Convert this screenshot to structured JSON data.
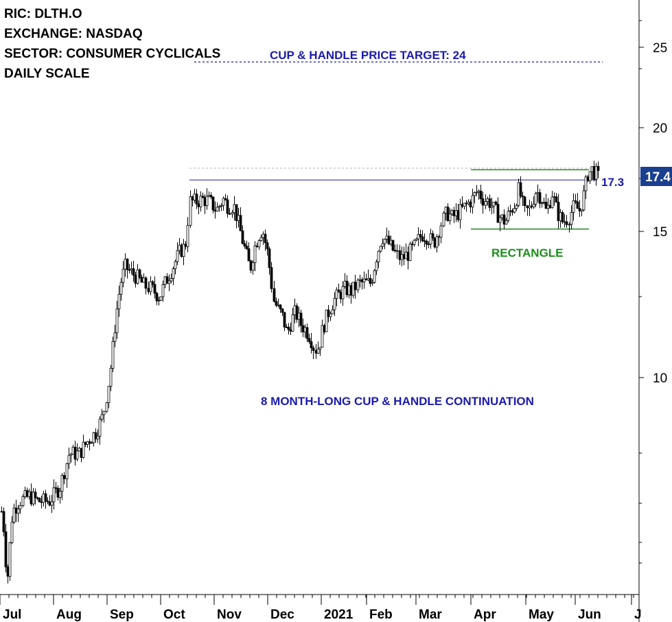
{
  "info": {
    "ric": "RIC: DLTH.O",
    "exchange": "EXCHANGE: NASDAQ",
    "sector": "SECTOR: CONSUMER CYCLICALS",
    "scale": "DAILY SCALE"
  },
  "chart_data": {
    "type": "candlestick",
    "scale": "log",
    "ylim": [
      6.2,
      28.5
    ],
    "y_ticks": [
      10,
      15,
      20,
      25
    ],
    "x_labels": [
      "Jul",
      "Aug",
      "Sep",
      "Oct",
      "Nov",
      "Dec",
      "2021",
      "Feb",
      "Mar",
      "Apr",
      "May",
      "Jun",
      "J"
    ],
    "last_price": "17.4",
    "levels": [
      {
        "name": "resistance",
        "value": 17.3,
        "label": "17.3",
        "color": "#1a1aa8"
      },
      {
        "name": "price-target",
        "value": 24,
        "label": "",
        "color": "#1a1ab0"
      },
      {
        "name": "rectangle-top",
        "value": 17.8,
        "label": "",
        "color": "#1a8f1a"
      },
      {
        "name": "rectangle-bottom",
        "value": 15.1,
        "label": "",
        "color": "#1a8f1a"
      }
    ],
    "annotations": {
      "target": "CUP & HANDLE PRICE TARGET: 24",
      "rectangle": "RECTANGLE",
      "pattern": "8 MONTH-LONG CUP & HANDLE CONTINUATION"
    },
    "price_path": [
      [
        0,
        7.1
      ],
      [
        6,
        6.5
      ],
      [
        10,
        5.6
      ],
      [
        18,
        6.9
      ],
      [
        28,
        7.1
      ],
      [
        42,
        7.2
      ],
      [
        55,
        7.1
      ],
      [
        72,
        7.1
      ],
      [
        88,
        7.4
      ],
      [
        100,
        8.1
      ],
      [
        115,
        8.1
      ],
      [
        128,
        8.4
      ],
      [
        140,
        8.6
      ],
      [
        150,
        9.0
      ],
      [
        158,
        9.9
      ],
      [
        162,
        10.5
      ],
      [
        168,
        11.8
      ],
      [
        175,
        13.0
      ],
      [
        182,
        13.6
      ],
      [
        190,
        13.4
      ],
      [
        200,
        13.2
      ],
      [
        210,
        12.9
      ],
      [
        220,
        12.8
      ],
      [
        232,
        12.5
      ],
      [
        240,
        13.0
      ],
      [
        250,
        13.5
      ],
      [
        262,
        14.2
      ],
      [
        270,
        14.4
      ],
      [
        276,
        16.3
      ],
      [
        285,
        16.3
      ],
      [
        295,
        16.4
      ],
      [
        305,
        16.3
      ],
      [
        315,
        15.9
      ],
      [
        325,
        16.4
      ],
      [
        332,
        16.1
      ],
      [
        340,
        16.1
      ],
      [
        347,
        15.3
      ],
      [
        352,
        14.7
      ],
      [
        358,
        14.1
      ],
      [
        364,
        13.5
      ],
      [
        370,
        14.3
      ],
      [
        376,
        14.8
      ],
      [
        382,
        15.1
      ],
      [
        390,
        14.1
      ],
      [
        398,
        12.4
      ],
      [
        404,
        12.1
      ],
      [
        410,
        11.9
      ],
      [
        418,
        11.3
      ],
      [
        424,
        11.7
      ],
      [
        430,
        12.0
      ],
      [
        438,
        11.6
      ],
      [
        446,
        11.4
      ],
      [
        452,
        11.2
      ],
      [
        458,
        10.8
      ],
      [
        464,
        10.9
      ],
      [
        470,
        11.5
      ],
      [
        478,
        12.0
      ],
      [
        486,
        12.4
      ],
      [
        494,
        12.6
      ],
      [
        502,
        12.8
      ],
      [
        512,
        12.7
      ],
      [
        522,
        13.0
      ],
      [
        532,
        13.0
      ],
      [
        540,
        13.0
      ],
      [
        548,
        14.0
      ],
      [
        556,
        14.8
      ],
      [
        566,
        14.5
      ],
      [
        576,
        14.1
      ],
      [
        584,
        13.9
      ],
      [
        594,
        14.1
      ],
      [
        604,
        14.4
      ],
      [
        614,
        14.9
      ],
      [
        622,
        14.8
      ],
      [
        632,
        14.5
      ],
      [
        642,
        15.3
      ],
      [
        650,
        15.8
      ],
      [
        658,
        15.6
      ],
      [
        668,
        15.8
      ],
      [
        678,
        16.1
      ],
      [
        688,
        16.4
      ],
      [
        696,
        16.8
      ],
      [
        704,
        16.4
      ],
      [
        712,
        16.3
      ],
      [
        720,
        15.9
      ],
      [
        728,
        15.6
      ],
      [
        736,
        15.4
      ],
      [
        742,
        15.8
      ],
      [
        750,
        16.2
      ],
      [
        756,
        16.9
      ],
      [
        764,
        15.8
      ],
      [
        772,
        16.0
      ],
      [
        780,
        16.8
      ],
      [
        788,
        16.5
      ],
      [
        796,
        15.8
      ],
      [
        804,
        16.7
      ],
      [
        812,
        15.8
      ],
      [
        820,
        15.4
      ],
      [
        828,
        15.6
      ],
      [
        836,
        16.1
      ],
      [
        844,
        15.9
      ],
      [
        850,
        16.6
      ],
      [
        856,
        17.6
      ],
      [
        862,
        17.8
      ],
      [
        868,
        17.6
      ],
      [
        872,
        17.4
      ]
    ]
  }
}
